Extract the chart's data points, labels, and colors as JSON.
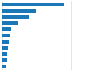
{
  "values": [
    900,
    500,
    390,
    240,
    125,
    115,
    100,
    90,
    80,
    72,
    55
  ],
  "bar_color": "#1a77b8",
  "background_color": "#ffffff",
  "grid_color": "#d9d9d9",
  "xlim": [
    0,
    1400
  ],
  "bar_height": 0.6
}
